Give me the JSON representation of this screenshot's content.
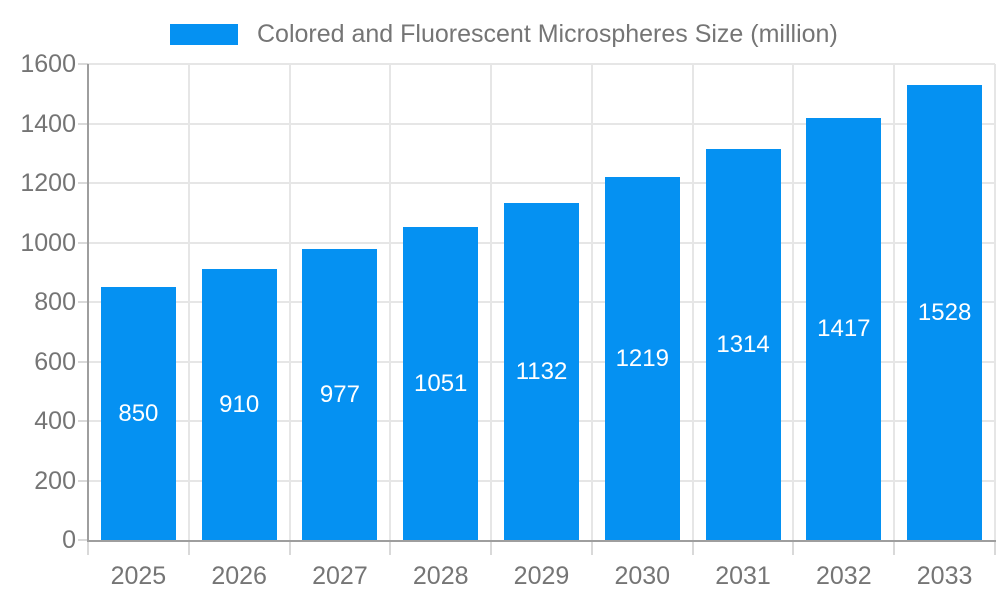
{
  "chart_data": {
    "type": "bar",
    "title": "Colored and Fluorescent Microspheres Size (million)",
    "legend": {
      "position": "top",
      "entries": [
        "Colored and Fluorescent Microspheres Size (million)"
      ]
    },
    "categories": [
      "2025",
      "2026",
      "2027",
      "2028",
      "2029",
      "2030",
      "2031",
      "2032",
      "2033"
    ],
    "series": [
      {
        "name": "Colored and Fluorescent Microspheres Size (million)",
        "values": [
          850,
          910,
          977,
          1051,
          1132,
          1219,
          1314,
          1417,
          1528
        ]
      }
    ],
    "value_labels": [
      "850",
      "910",
      "977",
      "1051",
      "1132",
      "1219",
      "1314",
      "1417",
      "1528"
    ],
    "xlabel": "",
    "ylabel": "",
    "ylim": [
      0,
      1600
    ],
    "y_ticks": [
      0,
      200,
      400,
      600,
      800,
      1000,
      1200,
      1400,
      1600
    ],
    "grid": true,
    "colors": {
      "bar": "#0591f2",
      "bar_value_text": "#ffffff",
      "grid_line": "#e6e6e6",
      "tick_mark": "#d9d9d9",
      "axis_line": "#9e9e9e",
      "tick_label_text": "#757575",
      "legend_text": "#757575",
      "background": "#ffffff"
    }
  }
}
